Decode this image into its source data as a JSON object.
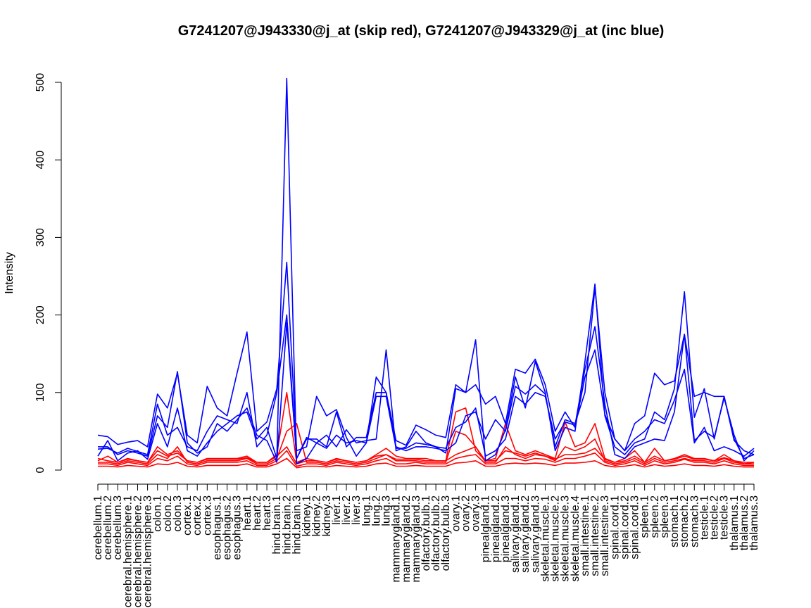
{
  "chart_data": {
    "type": "line",
    "title": "G7241207@J943330@j_at (skip red), G7241207@J943329@j_at (inc blue)",
    "xlabel": "",
    "ylabel": "Intensity",
    "ylim": [
      0,
      500
    ],
    "yticks": [
      "0",
      "100",
      "200",
      "300",
      "400",
      "500"
    ],
    "grid": false,
    "legend": "none",
    "colors": {
      "skip": "#ff0000",
      "inc": "#0000ff",
      "axis": "#000000"
    },
    "categories": [
      "cerebellum.1",
      "cerebellum.2",
      "cerebellum.3",
      "cerebral.hemisphere.1",
      "cerebral.hemisphere.2",
      "cerebral.hemisphere.3",
      "colon.1",
      "colon.2",
      "colon.3",
      "cortex.1",
      "cortex.2",
      "cortex.3",
      "esophagus.1",
      "esophagus.2",
      "esophagus.3",
      "heart.1",
      "heart.2",
      "heart.3",
      "hind.brain.1",
      "hind.brain.2",
      "hind.brain.3",
      "kidney.1",
      "kidney.2",
      "kidney.3",
      "liver.1",
      "liver.2",
      "liver.3",
      "lung.1",
      "lung.2",
      "lung.3",
      "mammarygland.1",
      "mammarygland.2",
      "mammarygland.3",
      "olfactory.bulb.1",
      "olfactory.bulb.2",
      "olfactory.bulb.3",
      "ovary.1",
      "ovary.2",
      "ovary.3",
      "pinealgland.1",
      "pinealgland.2",
      "pinealgland.3",
      "salivary.gland.1",
      "salivary.gland.2",
      "salivary.gland.3",
      "skeletal.muscle.1",
      "skeletal.muscle.2",
      "skeletal.muscle.3",
      "skeletal.muscle.4",
      "small.intestine.1",
      "small.intestine.2",
      "small.intestine.3",
      "spinal.cord.1",
      "spinal.cord.2",
      "spinal.cord.3",
      "spleen.1",
      "spleen.2",
      "spleen.3",
      "stomach.1",
      "stomach.2",
      "stomach.3",
      "testicle.1",
      "testicle.2",
      "testicle.3",
      "thalamus.1",
      "thalamus.2",
      "thalamus.3"
    ],
    "series": [
      {
        "group": "inc",
        "values": [
          18,
          38,
          12,
          22,
          25,
          14,
          60,
          30,
          80,
          25,
          18,
          35,
          50,
          60,
          70,
          75,
          40,
          55,
          15,
          505,
          8,
          15,
          35,
          45,
          30,
          52,
          35,
          38,
          40,
          155,
          25,
          30,
          50,
          35,
          30,
          22,
          105,
          100,
          168,
          12,
          20,
          52,
          120,
          80,
          140,
          100,
          25,
          55,
          50,
          140,
          240,
          70,
          30,
          20,
          35,
          40,
          75,
          65,
          105,
          230,
          68,
          105,
          40,
          95,
          40,
          15,
          20
        ]
      },
      {
        "group": "inc",
        "values": [
          45,
          43,
          33,
          36,
          38,
          30,
          98,
          80,
          125,
          45,
          35,
          108,
          80,
          70,
          125,
          178,
          50,
          62,
          105,
          268,
          25,
          30,
          95,
          70,
          78,
          42,
          18,
          35,
          120,
          100,
          38,
          32,
          58,
          52,
          45,
          42,
          110,
          100,
          110,
          85,
          95,
          60,
          130,
          125,
          143,
          110,
          50,
          75,
          55,
          120,
          155,
          72,
          40,
          25,
          60,
          70,
          125,
          110,
          115,
          175,
          95,
          100,
          95,
          95,
          38,
          25,
          20
        ]
      },
      {
        "group": "inc",
        "values": [
          27,
          28,
          22,
          28,
          24,
          20,
          85,
          45,
          55,
          30,
          25,
          50,
          70,
          65,
          60,
          100,
          30,
          45,
          100,
          200,
          15,
          40,
          40,
          30,
          75,
          30,
          42,
          42,
          100,
          100,
          30,
          25,
          30,
          30,
          28,
          25,
          35,
          70,
          75,
          40,
          65,
          50,
          108,
          98,
          110,
          98,
          30,
          65,
          60,
          100,
          235,
          100,
          40,
          25,
          40,
          50,
          65,
          60,
          90,
          130,
          35,
          55,
          25,
          30,
          25,
          18,
          28
        ]
      },
      {
        "group": "inc",
        "values": [
          30,
          30,
          20,
          25,
          22,
          18,
          70,
          55,
          127,
          35,
          22,
          30,
          60,
          50,
          65,
          80,
          45,
          38,
          10,
          190,
          15,
          42,
          35,
          28,
          45,
          35,
          38,
          35,
          95,
          95,
          28,
          28,
          35,
          33,
          30,
          28,
          55,
          62,
          80,
          18,
          25,
          40,
          95,
          85,
          100,
          95,
          40,
          62,
          58,
          130,
          185,
          85,
          20,
          15,
          30,
          35,
          40,
          38,
          75,
          175,
          38,
          50,
          42,
          93,
          45,
          12,
          25
        ]
      },
      {
        "group": "skip",
        "values": [
          12,
          18,
          10,
          15,
          12,
          10,
          30,
          20,
          25,
          12,
          10,
          15,
          15,
          15,
          15,
          18,
          10,
          10,
          20,
          100,
          10,
          15,
          12,
          10,
          15,
          12,
          10,
          12,
          20,
          28,
          18,
          15,
          15,
          15,
          12,
          12,
          75,
          80,
          25,
          12,
          15,
          60,
          25,
          20,
          25,
          20,
          15,
          62,
          30,
          35,
          60,
          15,
          10,
          15,
          25,
          10,
          28,
          12,
          15,
          20,
          15,
          15,
          12,
          20,
          12,
          8,
          10
        ]
      },
      {
        "group": "skip",
        "values": [
          10,
          10,
          8,
          12,
          10,
          8,
          20,
          15,
          30,
          10,
          8,
          12,
          12,
          12,
          12,
          15,
          8,
          8,
          15,
          50,
          60,
          10,
          10,
          8,
          12,
          10,
          8,
          10,
          15,
          20,
          12,
          12,
          12,
          10,
          10,
          10,
          50,
          45,
          30,
          10,
          10,
          30,
          20,
          15,
          20,
          18,
          12,
          30,
          25,
          30,
          40,
          12,
          8,
          10,
          15,
          8,
          15,
          10,
          12,
          15,
          12,
          12,
          10,
          15,
          10,
          8,
          8
        ]
      },
      {
        "group": "skip",
        "values": [
          15,
          12,
          10,
          14,
          12,
          10,
          25,
          18,
          22,
          12,
          10,
          14,
          14,
          14,
          14,
          16,
          10,
          10,
          18,
          30,
          8,
          12,
          12,
          10,
          14,
          12,
          10,
          12,
          18,
          20,
          14,
          14,
          14,
          12,
          12,
          12,
          20,
          25,
          30,
          12,
          12,
          25,
          22,
          18,
          22,
          18,
          14,
          20,
          20,
          22,
          28,
          14,
          10,
          12,
          18,
          10,
          18,
          12,
          14,
          18,
          14,
          14,
          12,
          16,
          12,
          10,
          10
        ]
      },
      {
        "group": "skip",
        "values": [
          8,
          8,
          6,
          10,
          8,
          6,
          15,
          12,
          18,
          8,
          6,
          10,
          10,
          10,
          10,
          12,
          6,
          6,
          12,
          25,
          5,
          8,
          8,
          6,
          10,
          8,
          6,
          8,
          12,
          15,
          8,
          8,
          10,
          8,
          8,
          8,
          15,
          18,
          20,
          8,
          8,
          15,
          15,
          12,
          15,
          14,
          10,
          15,
          15,
          18,
          22,
          10,
          6,
          8,
          12,
          6,
          12,
          8,
          10,
          14,
          10,
          10,
          8,
          12,
          8,
          6,
          6
        ]
      },
      {
        "group": "skip",
        "values": [
          5,
          5,
          4,
          6,
          5,
          4,
          8,
          7,
          10,
          5,
          4,
          6,
          6,
          6,
          6,
          8,
          4,
          4,
          8,
          15,
          3,
          5,
          5,
          4,
          6,
          5,
          4,
          5,
          8,
          9,
          5,
          5,
          6,
          5,
          5,
          5,
          9,
          10,
          12,
          5,
          5,
          8,
          9,
          8,
          9,
          8,
          6,
          9,
          9,
          10,
          12,
          6,
          4,
          5,
          7,
          4,
          7,
          5,
          6,
          8,
          6,
          6,
          5,
          7,
          5,
          4,
          4
        ]
      }
    ]
  }
}
